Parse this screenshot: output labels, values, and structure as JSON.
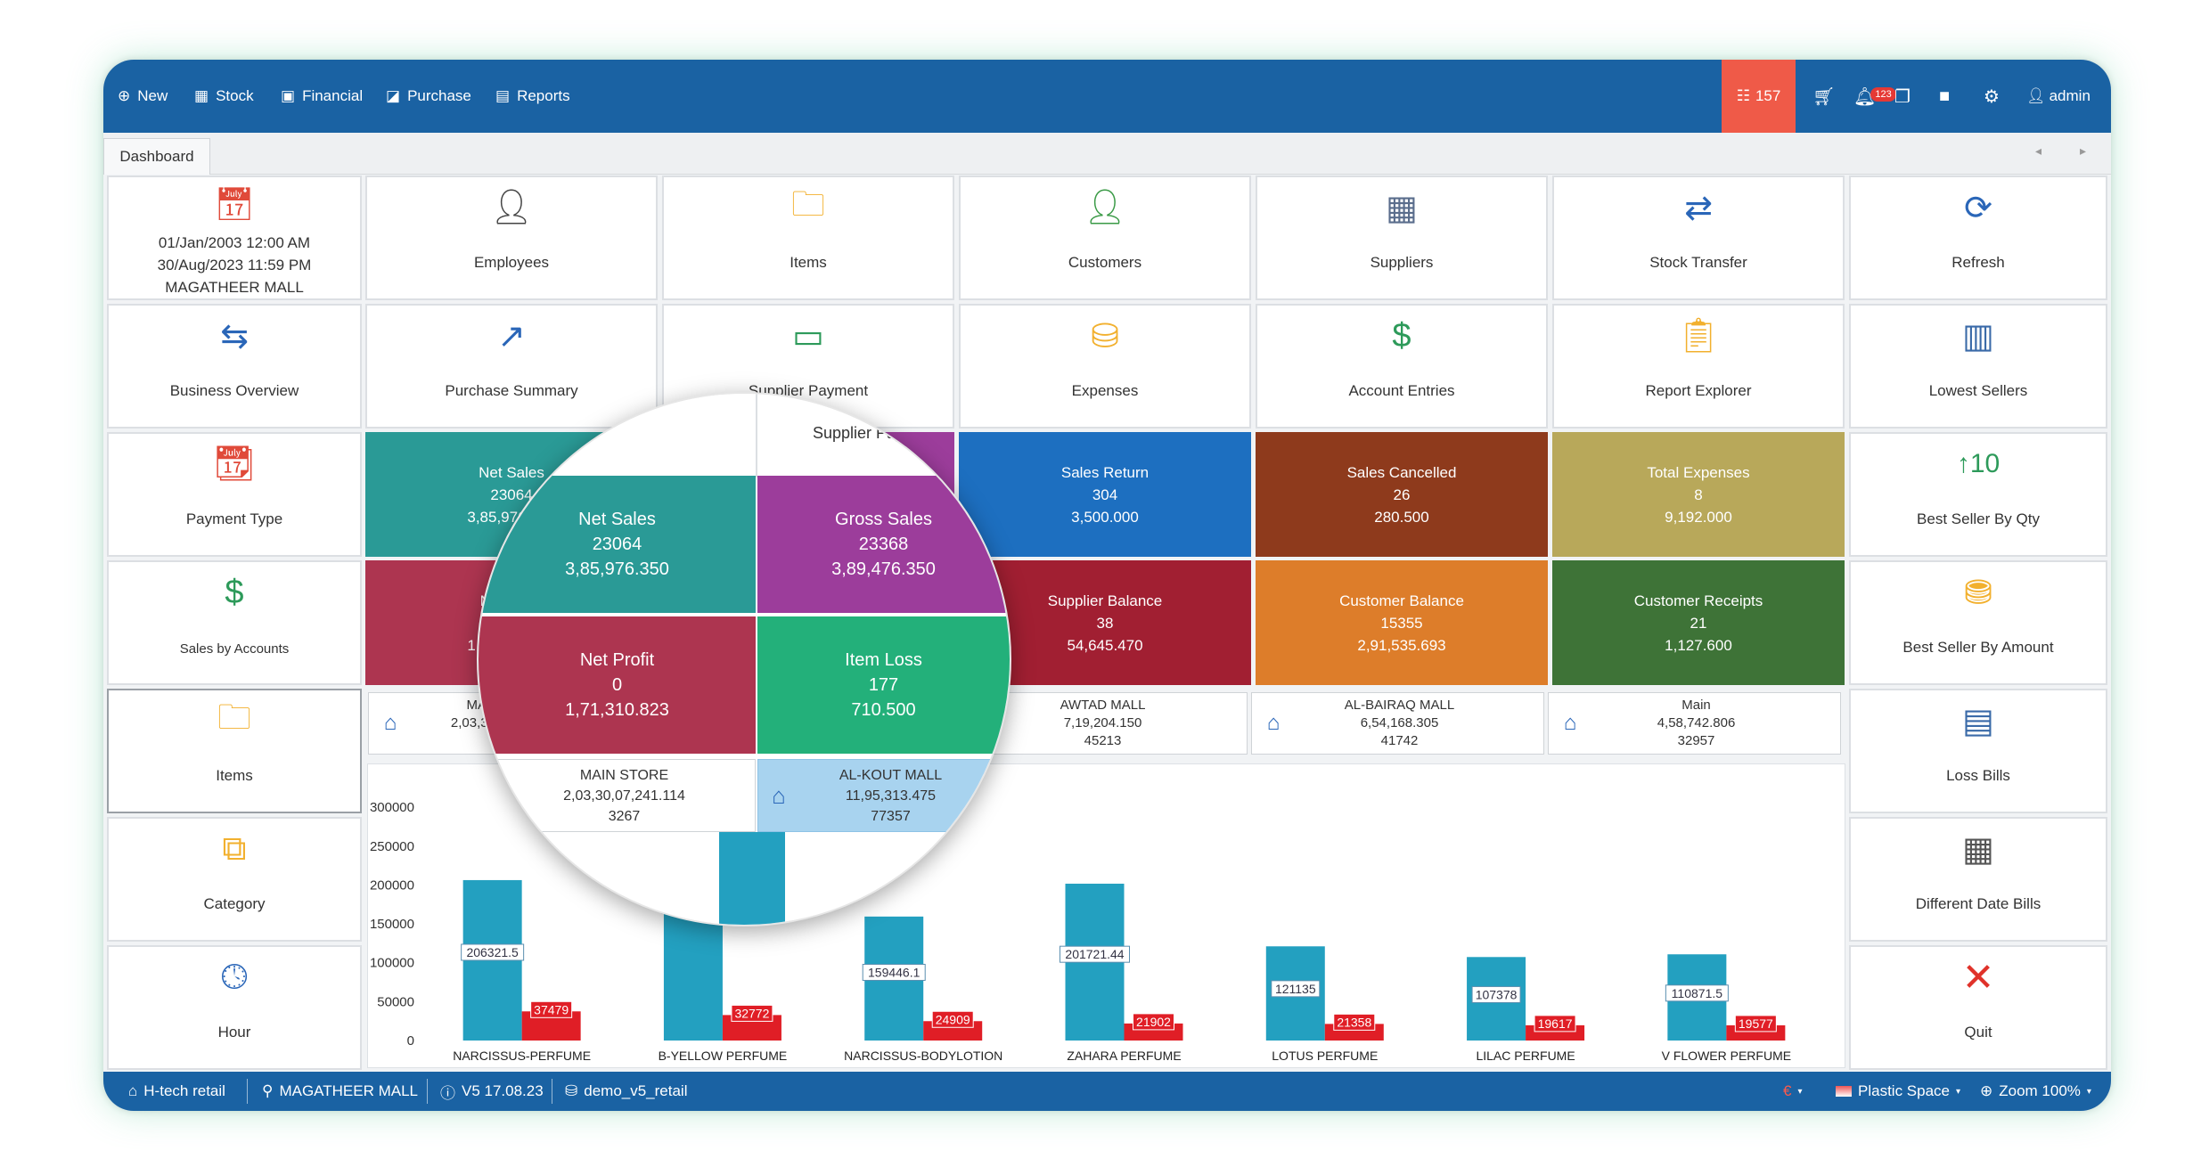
{
  "nav": {
    "items": [
      {
        "label": "New",
        "icon": "plus-circle-icon",
        "glyph": "⊕"
      },
      {
        "label": "Stock",
        "icon": "boxes-icon",
        "glyph": "▦"
      },
      {
        "label": "Financial",
        "icon": "money-icon",
        "glyph": "▣"
      },
      {
        "label": "Purchase",
        "icon": "chart-icon",
        "glyph": "◪"
      },
      {
        "label": "Reports",
        "icon": "clipboard-icon",
        "glyph": "▤"
      }
    ],
    "notification_count": "157",
    "alert_badge": "123",
    "user": "admin"
  },
  "tabs": {
    "dashboard": "Dashboard"
  },
  "date_panel": {
    "from": "01/Jan/2003 12:00 AM",
    "to": "30/Aug/2023 11:59 PM",
    "store": "MAGATHEER MALL"
  },
  "tiles": {
    "employees": "Employees",
    "items": "Items",
    "customers": "Customers",
    "suppliers": "Suppliers",
    "stock_transfer": "Stock Transfer",
    "refresh": "Refresh",
    "business_overview": "Business Overview",
    "purchase_summary": "Purchase Summary",
    "supplier_payment": "Supplier Payment",
    "expenses": "Expenses",
    "account_entries": "Account Entries",
    "report_explorer": "Report Explorer",
    "lowest_sellers": "Lowest Sellers",
    "payment_type": "Payment Type",
    "best_seller_qty": "Best Seller By Qty",
    "sales_by_accounts": "Sales by Accounts",
    "best_seller_amount": "Best Seller By Amount",
    "items_left": "Items",
    "loss_bills": "Loss Bills",
    "category": "Category",
    "different_date_bills": "Different Date Bills",
    "hour": "Hour",
    "quit": "Quit"
  },
  "stats": {
    "net_sales": {
      "title": "Net Sales",
      "count": "23064",
      "amount": "3,85,976.350"
    },
    "gross_sales": {
      "title": "Gross Sales",
      "count": "23368",
      "amount": "3,89,476.350"
    },
    "sales_return": {
      "title": "Sales Return",
      "count": "304",
      "amount": "3,500.000"
    },
    "sales_cancelled": {
      "title": "Sales Cancelled",
      "count": "26",
      "amount": "280.500"
    },
    "total_expenses": {
      "title": "Total Expenses",
      "count": "8",
      "amount": "9,192.000"
    },
    "net_profit": {
      "title": "Net Profit",
      "count": "0",
      "amount": "1,71,310.823"
    },
    "item_loss": {
      "title": "Item Loss",
      "count": "177",
      "amount": "710.500"
    },
    "supplier_balance": {
      "title": "Supplier Balance",
      "count": "38",
      "amount": "54,645.470"
    },
    "customer_balance": {
      "title": "Customer Balance",
      "count": "15355",
      "amount": "2,91,535.693"
    },
    "customer_receipts": {
      "title": "Customer Receipts",
      "count": "21",
      "amount": "1,127.600"
    }
  },
  "stores": [
    {
      "name": "MAIN STORE",
      "value": "2,03,30,07,241.114",
      "count": "3267"
    },
    {
      "name": "AL-KOUT MALL",
      "value": "11,95,313.475",
      "count": "77357"
    },
    {
      "name": "AWTAD MALL",
      "value": "7,19,204.150",
      "count": "45213"
    },
    {
      "name": "AL-BAIRAQ MALL",
      "value": "6,54,168.305",
      "count": "41742"
    },
    {
      "name": "Main",
      "value": "4,58,742.806",
      "count": "32957"
    }
  ],
  "chart_data": {
    "type": "bar",
    "categories": [
      "NARCISSUS-PERFUME",
      "B-YELLOW PERFUME",
      "NARCISSUS-BODYLOTION",
      "ZAHARA PERFUME",
      "LOTUS PERFUME",
      "LILAC PERFUME",
      "V FLOWER PERFUME"
    ],
    "series": [
      {
        "values": [
          206321.5,
          316411.6,
          159446.1,
          201721.44,
          121135,
          107378,
          110871.5
        ]
      },
      {
        "values": [
          37479,
          32772,
          24909,
          21902,
          21358,
          19617,
          19577
        ]
      }
    ],
    "yticks": [
      "0",
      "50000",
      "100000",
      "150000",
      "200000",
      "250000",
      "300000"
    ],
    "ylim": [
      0,
      330000
    ],
    "colors": [
      "#23a0c0",
      "#e01e26"
    ],
    "grid": false
  },
  "status": {
    "company": "H-tech retail",
    "store": "MAGATHEER MALL",
    "version": "V5 17.08.23",
    "database": "demo_v5_retail",
    "theme": "Plastic Space",
    "zoom": "Zoom 100%"
  },
  "colors": {
    "net_sales": "#2a9a96",
    "gross_sales": "#9c3d9b",
    "sales_return": "#1d6fc0",
    "sales_cancelled": "#8e3a1c",
    "total_expenses": "#b8a85a",
    "net_profit": "#ad3550",
    "item_loss": "#23b07a",
    "supplier_balance": "#a11f32",
    "customer_balance": "#dd7d2a",
    "customer_receipts": "#3e7337",
    "store_selected": "#a8d3ef"
  }
}
